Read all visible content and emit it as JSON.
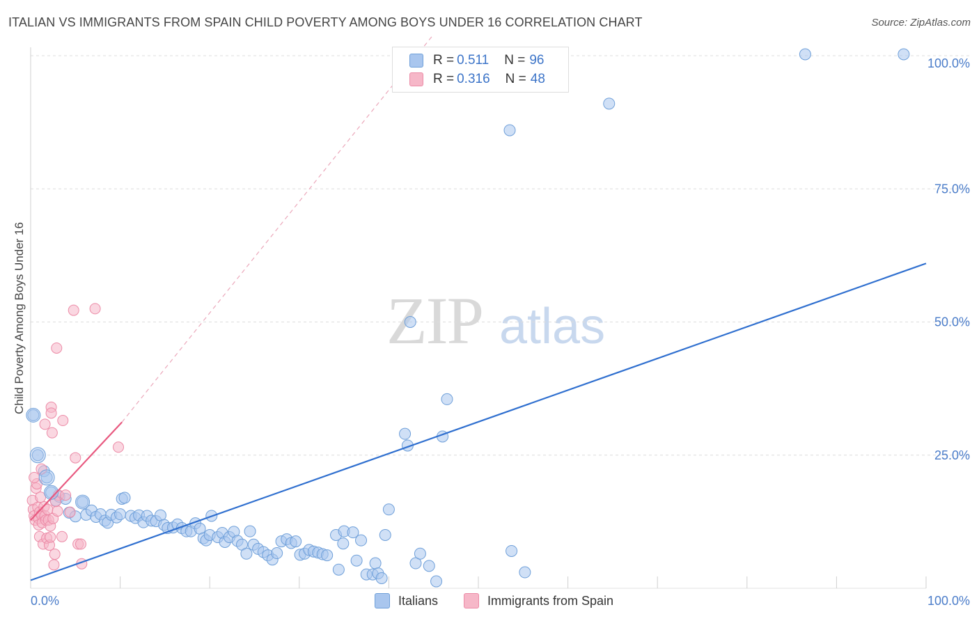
{
  "header": {
    "title": "ITALIAN VS IMMIGRANTS FROM SPAIN CHILD POVERTY AMONG BOYS UNDER 16 CORRELATION CHART",
    "source": "Source: ZipAtlas.com"
  },
  "watermark": {
    "zip": "ZIP",
    "atlas": "atlas"
  },
  "legend": {
    "rows": [
      {
        "r_label": "R = ",
        "r_value": "0.511",
        "n_label": "N = ",
        "n_value": "96",
        "color": "#a9c6ee"
      },
      {
        "r_label": "R = ",
        "r_value": "0.316",
        "n_label": "N = ",
        "n_value": "48",
        "color": "#f6b7c8"
      }
    ],
    "bottom": [
      {
        "label": "Italians",
        "color": "#a9c6ee"
      },
      {
        "label": "Immigrants from Spain",
        "color": "#f6b7c8"
      }
    ]
  },
  "chart_data": {
    "type": "scatter",
    "title": "ITALIAN VS IMMIGRANTS FROM SPAIN CHILD POVERTY AMONG BOYS UNDER 16 CORRELATION CHART",
    "xlabel": "",
    "ylabel": "Child Poverty Among Boys Under 16",
    "xlim": [
      0,
      100
    ],
    "ylim": [
      0,
      100
    ],
    "x_tick_labels": [
      "0.0%",
      "100.0%"
    ],
    "y_ticks": [
      25,
      50,
      75,
      100
    ],
    "y_tick_labels": [
      "25.0%",
      "50.0%",
      "75.0%",
      "100.0%"
    ],
    "grid": true,
    "series": [
      {
        "name": "Italians",
        "color": "#a9c6ee",
        "edge": "#6e9fd9",
        "trend": {
          "x": [
            0,
            100
          ],
          "y": [
            1.5,
            61.0
          ],
          "color": "#2f6fcf",
          "style": "solid"
        },
        "points": [
          [
            0.3,
            32.5
          ],
          [
            0.8,
            25.0
          ],
          [
            1.5,
            22.0
          ],
          [
            1.8,
            20.8
          ],
          [
            2.3,
            18.0
          ],
          [
            2.8,
            16.5
          ],
          [
            3.2,
            17.2
          ],
          [
            3.9,
            16.8
          ],
          [
            4.3,
            14.2
          ],
          [
            5.0,
            13.5
          ],
          [
            5.8,
            16.2
          ],
          [
            6.2,
            13.8
          ],
          [
            6.8,
            14.6
          ],
          [
            7.3,
            13.4
          ],
          [
            7.8,
            13.9
          ],
          [
            8.3,
            12.7
          ],
          [
            8.6,
            12.3
          ],
          [
            9.0,
            13.8
          ],
          [
            9.6,
            13.3
          ],
          [
            10.0,
            13.9
          ],
          [
            10.2,
            16.8
          ],
          [
            10.5,
            17.0
          ],
          [
            11.2,
            13.6
          ],
          [
            11.7,
            13.2
          ],
          [
            12.1,
            13.7
          ],
          [
            12.6,
            12.4
          ],
          [
            13.0,
            13.6
          ],
          [
            13.5,
            12.7
          ],
          [
            14.0,
            12.6
          ],
          [
            14.5,
            13.7
          ],
          [
            14.9,
            11.9
          ],
          [
            15.3,
            11.3
          ],
          [
            15.9,
            11.4
          ],
          [
            16.4,
            12.0
          ],
          [
            16.9,
            11.3
          ],
          [
            17.4,
            10.7
          ],
          [
            17.9,
            10.7
          ],
          [
            18.4,
            12.2
          ],
          [
            18.9,
            11.2
          ],
          [
            19.3,
            9.4
          ],
          [
            19.6,
            9.0
          ],
          [
            20.0,
            10.0
          ],
          [
            20.2,
            13.6
          ],
          [
            20.9,
            9.6
          ],
          [
            21.4,
            10.4
          ],
          [
            21.7,
            8.7
          ],
          [
            22.2,
            9.6
          ],
          [
            22.7,
            10.6
          ],
          [
            23.1,
            8.9
          ],
          [
            23.6,
            8.2
          ],
          [
            24.1,
            6.5
          ],
          [
            24.5,
            10.7
          ],
          [
            24.9,
            8.2
          ],
          [
            25.4,
            7.4
          ],
          [
            26.0,
            6.8
          ],
          [
            26.5,
            6.2
          ],
          [
            27.0,
            5.4
          ],
          [
            27.5,
            6.6
          ],
          [
            28.0,
            8.8
          ],
          [
            28.6,
            9.2
          ],
          [
            29.1,
            8.5
          ],
          [
            29.6,
            8.8
          ],
          [
            30.1,
            6.3
          ],
          [
            30.6,
            6.5
          ],
          [
            31.1,
            7.2
          ],
          [
            31.6,
            6.9
          ],
          [
            32.1,
            6.7
          ],
          [
            32.6,
            6.4
          ],
          [
            33.1,
            6.2
          ],
          [
            34.1,
            10.0
          ],
          [
            34.4,
            3.5
          ],
          [
            34.9,
            8.4
          ],
          [
            35.0,
            10.7
          ],
          [
            36.0,
            10.5
          ],
          [
            36.4,
            5.2
          ],
          [
            36.9,
            9.0
          ],
          [
            37.5,
            2.6
          ],
          [
            38.2,
            2.6
          ],
          [
            38.5,
            4.7
          ],
          [
            38.8,
            2.8
          ],
          [
            39.2,
            1.9
          ],
          [
            39.6,
            10.0
          ],
          [
            40.0,
            14.8
          ],
          [
            41.8,
            29.0
          ],
          [
            42.1,
            26.8
          ],
          [
            42.4,
            50.0
          ],
          [
            43.0,
            4.7
          ],
          [
            43.5,
            6.5
          ],
          [
            44.5,
            4.2
          ],
          [
            45.3,
            1.3
          ],
          [
            46.0,
            28.5
          ],
          [
            46.5,
            35.5
          ],
          [
            53.5,
            86.0
          ],
          [
            53.7,
            7.0
          ],
          [
            55.2,
            3.0
          ],
          [
            64.6,
            91.0
          ],
          [
            86.5,
            101.5
          ],
          [
            97.5,
            101.5
          ]
        ]
      },
      {
        "name": "Immigrants from Spain",
        "color": "#f6b7c8",
        "edge": "#ec8aa6",
        "trend": {
          "x": [
            0,
            10.2
          ],
          "y": [
            12.8,
            31.2
          ],
          "color": "#e8587f",
          "style": "solid",
          "ext_x": [
            10.2,
            45
          ],
          "ext_y": [
            31.2,
            104
          ],
          "ext_style": "dashed"
        },
        "points": [
          [
            0.2,
            16.5
          ],
          [
            0.3,
            14.8
          ],
          [
            0.4,
            13.6
          ],
          [
            0.5,
            12.8
          ],
          [
            0.6,
            18.8
          ],
          [
            0.7,
            19.6
          ],
          [
            0.8,
            15.2
          ],
          [
            0.9,
            13.1
          ],
          [
            0.9,
            11.9
          ],
          [
            1.0,
            14.3
          ],
          [
            1.0,
            9.7
          ],
          [
            1.1,
            17.1
          ],
          [
            1.2,
            13.8
          ],
          [
            1.2,
            22.4
          ],
          [
            1.3,
            12.3
          ],
          [
            1.4,
            8.3
          ],
          [
            1.5,
            15.3
          ],
          [
            1.6,
            13.6
          ],
          [
            1.7,
            12.8
          ],
          [
            1.8,
            9.4
          ],
          [
            1.9,
            14.8
          ],
          [
            2.0,
            12.8
          ],
          [
            2.1,
            8.1
          ],
          [
            2.2,
            11.7
          ],
          [
            2.2,
            9.6
          ],
          [
            2.3,
            34.0
          ],
          [
            2.3,
            32.9
          ],
          [
            2.4,
            29.2
          ],
          [
            2.5,
            13.1
          ],
          [
            2.6,
            4.4
          ],
          [
            2.7,
            6.4
          ],
          [
            2.9,
            45.1
          ],
          [
            3.0,
            14.5
          ],
          [
            3.1,
            17.5
          ],
          [
            3.5,
            9.7
          ],
          [
            3.6,
            31.5
          ],
          [
            3.9,
            17.5
          ],
          [
            4.4,
            14.3
          ],
          [
            4.8,
            52.2
          ],
          [
            5.0,
            24.5
          ],
          [
            5.3,
            8.3
          ],
          [
            5.6,
            8.3
          ],
          [
            5.7,
            4.6
          ],
          [
            7.2,
            52.5
          ],
          [
            9.8,
            26.5
          ],
          [
            1.6,
            30.8
          ],
          [
            0.4,
            20.8
          ],
          [
            2.8,
            16.3
          ]
        ]
      }
    ]
  }
}
